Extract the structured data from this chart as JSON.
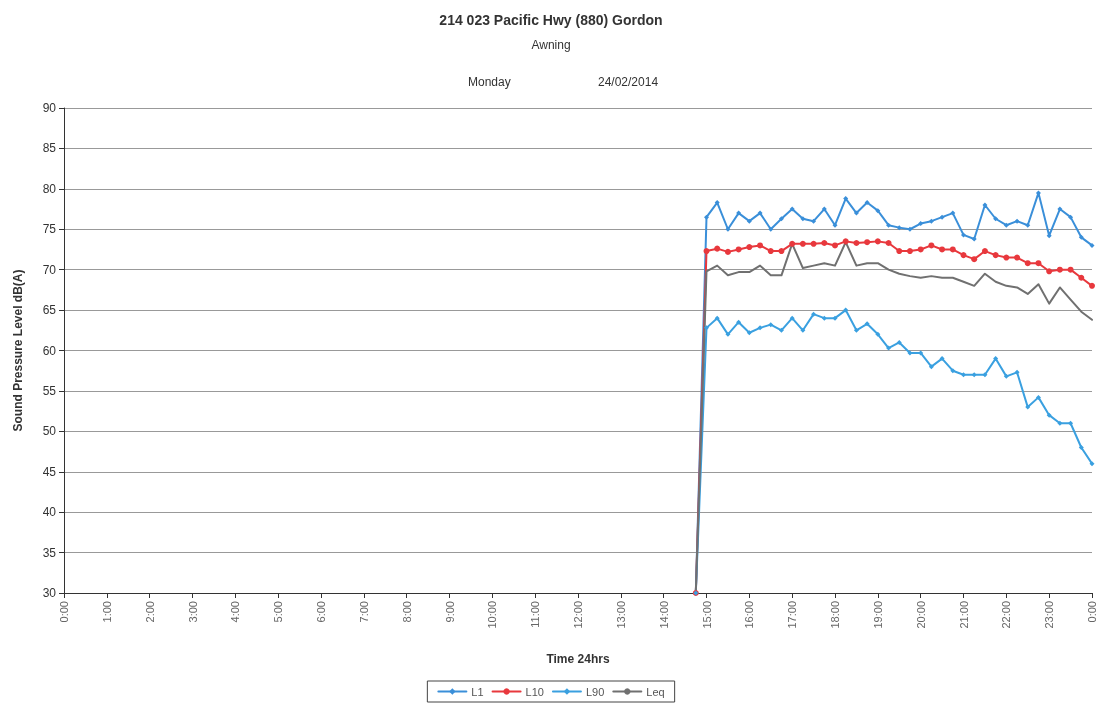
{
  "chart_data": {
    "type": "line",
    "title": "214 023 Pacific Hwy (880) Gordon",
    "subtitle": "Awning",
    "annotations": [
      "Monday",
      "24/02/2014"
    ],
    "xlabel": "Time 24hrs",
    "ylabel": "Sound Pressure Level dB(A)",
    "x": [
      14.75,
      15,
      15.25,
      15.5,
      15.75,
      16,
      16.25,
      16.5,
      16.75,
      17,
      17.25,
      17.5,
      17.75,
      18,
      18.25,
      18.5,
      18.75,
      19,
      19.25,
      19.5,
      19.75,
      20,
      20.25,
      20.5,
      20.75,
      21,
      21.25,
      21.5,
      21.75,
      22,
      22.25,
      22.5,
      22.75,
      23,
      23.25,
      23.5,
      23.75,
      24
    ],
    "series": [
      {
        "name": "L1",
        "color": "#3a8fd9",
        "marker": "diamond",
        "values": [
          30,
          76.5,
          78.3,
          75,
          77,
          76,
          77,
          75,
          76.3,
          77.5,
          76.3,
          76,
          77.5,
          75.5,
          78.8,
          77,
          78.3,
          77.3,
          75.5,
          75.2,
          75,
          75.7,
          76,
          76.5,
          77,
          74.3,
          73.8,
          78,
          76.3,
          75.5,
          76,
          75.5,
          79.5,
          74.2,
          77.5,
          76.5,
          74,
          73
        ]
      },
      {
        "name": "L10",
        "color": "#e8383d",
        "marker": "circle",
        "values": [
          30,
          72.3,
          72.6,
          72.2,
          72.5,
          72.8,
          73,
          72.3,
          72.3,
          73.2,
          73.2,
          73.2,
          73.3,
          73,
          73.5,
          73.3,
          73.4,
          73.5,
          73.3,
          72.3,
          72.3,
          72.5,
          73,
          72.5,
          72.5,
          71.8,
          71.3,
          72.3,
          71.8,
          71.5,
          71.5,
          70.8,
          70.8,
          69.8,
          70,
          70,
          69,
          68
        ]
      },
      {
        "name": "L90",
        "color": "#3aa0e0",
        "marker": "diamond",
        "values": [
          30,
          62.8,
          64,
          62,
          63.5,
          62.2,
          62.8,
          63.2,
          62.5,
          64,
          62.5,
          64.5,
          64,
          64,
          65,
          62.5,
          63.3,
          62,
          60.3,
          61,
          59.7,
          59.7,
          58,
          59,
          57.5,
          57,
          57,
          57,
          59,
          56.8,
          57.3,
          53,
          54.2,
          52,
          51,
          51,
          48,
          46
        ]
      },
      {
        "name": "Leq",
        "color": "#707070",
        "marker": "none",
        "values": [
          30,
          69.8,
          70.5,
          69.3,
          69.7,
          69.7,
          70.5,
          69.3,
          69.3,
          73.2,
          70.2,
          70.5,
          70.8,
          70.5,
          73.4,
          70.5,
          70.8,
          70.8,
          70,
          69.5,
          69.2,
          69,
          69.2,
          69,
          69,
          68.5,
          68,
          69.5,
          68.5,
          68,
          67.8,
          67,
          68.2,
          65.8,
          67.8,
          66.3,
          64.8,
          63.8
        ]
      }
    ],
    "xlim": [
      0,
      24
    ],
    "xticks": [
      {
        "value": 0,
        "label": "0:00"
      },
      {
        "value": 1,
        "label": "1:00"
      },
      {
        "value": 2,
        "label": "2:00"
      },
      {
        "value": 3,
        "label": "3:00"
      },
      {
        "value": 4,
        "label": "4:00"
      },
      {
        "value": 5,
        "label": "5:00"
      },
      {
        "value": 6,
        "label": "6:00"
      },
      {
        "value": 7,
        "label": "7:00"
      },
      {
        "value": 8,
        "label": "8:00"
      },
      {
        "value": 9,
        "label": "9:00"
      },
      {
        "value": 10,
        "label": "10:00"
      },
      {
        "value": 11,
        "label": "11:00"
      },
      {
        "value": 12,
        "label": "12:00"
      },
      {
        "value": 13,
        "label": "13:00"
      },
      {
        "value": 14,
        "label": "14:00"
      },
      {
        "value": 15,
        "label": "15:00"
      },
      {
        "value": 16,
        "label": "16:00"
      },
      {
        "value": 17,
        "label": "17:00"
      },
      {
        "value": 18,
        "label": "18:00"
      },
      {
        "value": 19,
        "label": "19:00"
      },
      {
        "value": 20,
        "label": "20:00"
      },
      {
        "value": 21,
        "label": "21:00"
      },
      {
        "value": 22,
        "label": "22:00"
      },
      {
        "value": 23,
        "label": "23:00"
      },
      {
        "value": 24,
        "label": "0:00"
      }
    ],
    "ylim": [
      30,
      90
    ],
    "yticks": [
      30,
      35,
      40,
      45,
      50,
      55,
      60,
      65,
      70,
      75,
      80,
      85,
      90
    ],
    "grid": "y",
    "legend": "bottom",
    "line_style": "solid"
  }
}
